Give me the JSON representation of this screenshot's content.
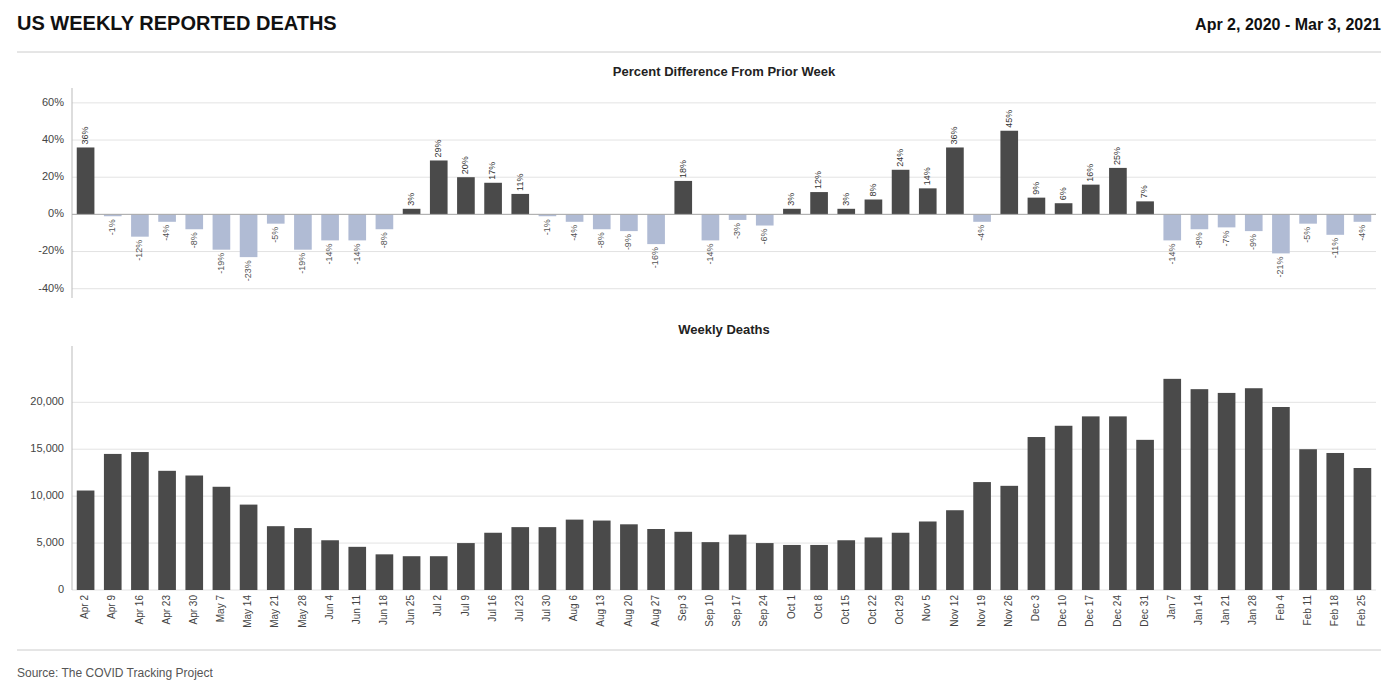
{
  "title": "US WEEKLY REPORTED DEATHS",
  "subtitle": "Apr 2, 2020 - Mar 3, 2021",
  "annotations": [
    "Source: The COVID Tracking Project"
  ],
  "chart_data": [
    {
      "type": "bar",
      "title": "Percent Difference From Prior Week",
      "categories": [
        "Apr 2",
        "Apr 9",
        "Apr 16",
        "Apr 23",
        "Apr 30",
        "May 7",
        "May 14",
        "May 21",
        "May 28",
        "Jun 4",
        "Jun 11",
        "Jun 18",
        "Jun 25",
        "Jul 2",
        "Jul 9",
        "Jul 16",
        "Jul 23",
        "Jul 30",
        "Aug 6",
        "Aug 13",
        "Aug 20",
        "Aug 27",
        "Sep 3",
        "Sep 10",
        "Sep 17",
        "Sep 24",
        "Oct 1",
        "Oct 8",
        "Oct 15",
        "Oct 22",
        "Oct 29",
        "Nov 5",
        "Nov 12",
        "Nov 19",
        "Nov 26",
        "Dec 3",
        "Dec 10",
        "Dec 17",
        "Dec 24",
        "Dec 31",
        "Jan 7",
        "Jan 14",
        "Jan 21",
        "Jan 28",
        "Feb 4",
        "Feb 11",
        "Feb 18",
        "Feb 25"
      ],
      "values": [
        36,
        -1,
        -12,
        -4,
        -8,
        -19,
        -23,
        -5,
        -19,
        -14,
        -14,
        -8,
        3,
        29,
        20,
        17,
        11,
        -1,
        -4,
        -8,
        -9,
        -16,
        18,
        -14,
        -3,
        -6,
        3,
        12,
        3,
        8,
        24,
        14,
        36,
        -4,
        45,
        9,
        6,
        16,
        25,
        7,
        -14,
        -8,
        -7,
        -9,
        -21,
        -5,
        -11,
        -4
      ],
      "value_labels": [
        "36%",
        "-1%",
        "-12%",
        "-4%",
        "-8%",
        "-19%",
        "-23%",
        "-5%",
        "-19%",
        "-14%",
        "-14%",
        "-8%",
        "3%",
        "29%",
        "20%",
        "17%",
        "11%",
        "-1%",
        "-4%",
        "-8%",
        "-9%",
        "-16%",
        "18%",
        "-14%",
        "-3%",
        "-6%",
        "3%",
        "12%",
        "3%",
        "8%",
        "24%",
        "14%",
        "36%",
        "-4%",
        "45%",
        "9%",
        "6%",
        "16%",
        "25%",
        "7%",
        "-14%",
        "-8%",
        "-7%",
        "-9%",
        "-21%",
        "-5%",
        "-11%",
        "-4%"
      ],
      "data_labels": true,
      "colors": [
        "#4a4a4a",
        "#b0bbd4",
        "#b0bbd4",
        "#b0bbd4",
        "#b0bbd4",
        "#b0bbd4",
        "#b0bbd4",
        "#b0bbd4",
        "#b0bbd4",
        "#b0bbd4",
        "#b0bbd4",
        "#b0bbd4",
        "#4a4a4a",
        "#4a4a4a",
        "#4a4a4a",
        "#4a4a4a",
        "#4a4a4a",
        "#b0bbd4",
        "#b0bbd4",
        "#b0bbd4",
        "#b0bbd4",
        "#b0bbd4",
        "#4a4a4a",
        "#b0bbd4",
        "#b0bbd4",
        "#b0bbd4",
        "#4a4a4a",
        "#4a4a4a",
        "#4a4a4a",
        "#4a4a4a",
        "#4a4a4a",
        "#4a4a4a",
        "#4a4a4a",
        "#b0bbd4",
        "#4a4a4a",
        "#4a4a4a",
        "#4a4a4a",
        "#4a4a4a",
        "#4a4a4a",
        "#4a4a4a",
        "#b0bbd4",
        "#b0bbd4",
        "#b0bbd4",
        "#b0bbd4",
        "#b0bbd4",
        "#b0bbd4",
        "#b0bbd4",
        "#b0bbd4"
      ],
      "ylim": [
        -45,
        68
      ],
      "yticks": [
        {
          "value": -40,
          "label": "-40%"
        },
        {
          "value": -20,
          "label": "-20%"
        },
        {
          "value": 0,
          "label": "0%"
        },
        {
          "value": 20,
          "label": "20%"
        },
        {
          "value": 40,
          "label": "40%"
        },
        {
          "value": 60,
          "label": "60%"
        }
      ],
      "grid": true,
      "tick_labels": "y"
    },
    {
      "type": "bar",
      "title": "Weekly Deaths",
      "categories": [
        "Apr 2",
        "Apr 9",
        "Apr 16",
        "Apr 23",
        "Apr 30",
        "May 7",
        "May 14",
        "May 21",
        "May 28",
        "Jun 4",
        "Jun 11",
        "Jun 18",
        "Jun 25",
        "Jul 2",
        "Jul 9",
        "Jul 16",
        "Jul 23",
        "Jul 30",
        "Aug 6",
        "Aug 13",
        "Aug 20",
        "Aug 27",
        "Sep 3",
        "Sep 10",
        "Sep 17",
        "Sep 24",
        "Oct 1",
        "Oct 8",
        "Oct 15",
        "Oct 22",
        "Oct 29",
        "Nov 5",
        "Nov 12",
        "Nov 19",
        "Nov 26",
        "Dec 3",
        "Dec 10",
        "Dec 17",
        "Dec 24",
        "Dec 31",
        "Jan 7",
        "Jan 14",
        "Jan 21",
        "Jan 28",
        "Feb 4",
        "Feb 11",
        "Feb 18",
        "Feb 25"
      ],
      "values": [
        10600,
        14500,
        14700,
        12700,
        12200,
        11000,
        9100,
        6800,
        6600,
        5300,
        4600,
        3800,
        3600,
        3600,
        5000,
        6100,
        6700,
        6700,
        7500,
        7400,
        7000,
        6500,
        6200,
        5100,
        5900,
        5000,
        4800,
        4800,
        5300,
        5600,
        6100,
        7300,
        8500,
        11500,
        11100,
        16300,
        17500,
        18500,
        18500,
        16000,
        22500,
        21400,
        21000,
        21500,
        19500,
        15000,
        14600,
        13000
      ],
      "color": "#4a4a4a",
      "ylim": [
        0,
        26000
      ],
      "yticks": [
        0,
        {
          "value": 5000,
          "label": "5,000"
        },
        {
          "value": 10000,
          "label": "10,000"
        },
        {
          "value": 15000,
          "label": "15,000"
        },
        {
          "value": 20000,
          "label": "20,000"
        }
      ],
      "grid": true
    }
  ]
}
